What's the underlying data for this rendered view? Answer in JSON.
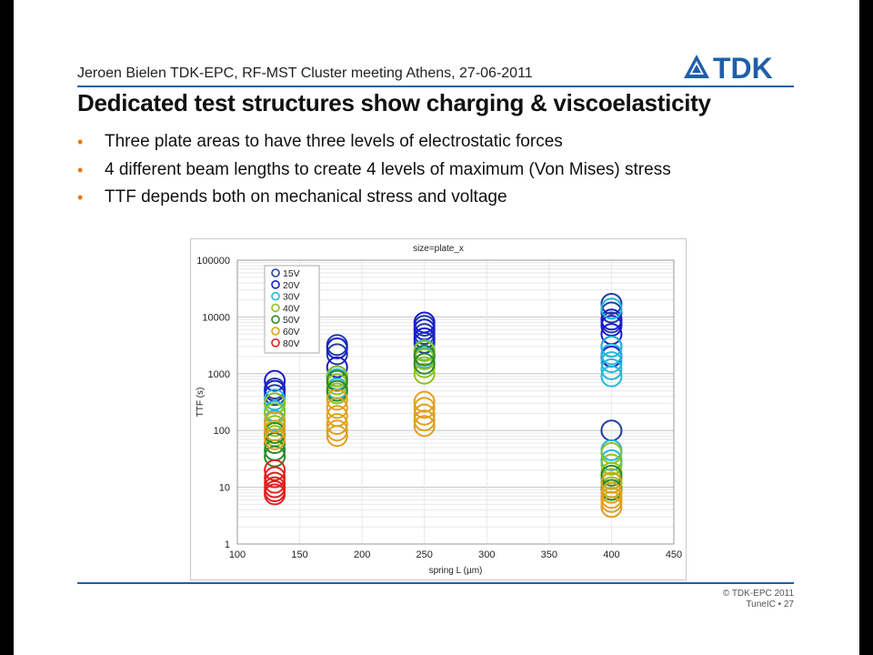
{
  "slide": {
    "header": "Jeroen Bielen TDK-EPC, RF-MST Cluster meeting Athens, 27-06-2011",
    "logo_text": "TDK",
    "title": "Dedicated test structures show charging & viscoelasticity",
    "bullets": [
      "Three plate areas to have three levels of electrostatic forces",
      "4 different beam lengths to create 4 levels of maximum (Von Mises) stress",
      "TTF depends both on mechanical stress and voltage"
    ],
    "footer_copyright": "© TDK-EPC 2011",
    "footer_page": "TuneIC • 27",
    "colors": {
      "rule": "#1f5fa8",
      "bullet": "#e67817",
      "logo": "#1f5fa8"
    }
  },
  "chart_data": {
    "type": "scatter",
    "title": "size=plate_x",
    "xlabel": "spring L (µm)",
    "ylabel": "TTF (s)",
    "xlim": [
      100,
      450
    ],
    "ylim": [
      1,
      100000
    ],
    "y_scale": "log",
    "x_ticks": [
      "100",
      "150",
      "200",
      "250",
      "300",
      "350",
      "400",
      "450"
    ],
    "y_ticks": [
      "1",
      "10",
      "100",
      "1000",
      "10000",
      "100000"
    ],
    "grid": true,
    "legend": "top-left",
    "series": [
      {
        "name": "15V",
        "color": "#1f3fa0",
        "points": [
          [
            130,
            550
          ],
          [
            130,
            420
          ],
          [
            130,
            300
          ],
          [
            180,
            3200
          ],
          [
            180,
            2200
          ],
          [
            250,
            7000
          ],
          [
            250,
            5000
          ],
          [
            250,
            3500
          ],
          [
            400,
            17000
          ],
          [
            400,
            12000
          ],
          [
            400,
            8000
          ],
          [
            400,
            100
          ]
        ]
      },
      {
        "name": "20V",
        "color": "#1a1acc",
        "points": [
          [
            130,
            750
          ],
          [
            130,
            500
          ],
          [
            180,
            2800
          ],
          [
            180,
            1300
          ],
          [
            180,
            900
          ],
          [
            250,
            8000
          ],
          [
            250,
            6000
          ],
          [
            250,
            4200
          ],
          [
            400,
            9000
          ],
          [
            400,
            7000
          ],
          [
            400,
            5000
          ],
          [
            400,
            3000
          ],
          [
            400,
            2000
          ]
        ]
      },
      {
        "name": "30V",
        "color": "#22b8d8",
        "points": [
          [
            130,
            350
          ],
          [
            130,
            220
          ],
          [
            130,
            150
          ],
          [
            180,
            800
          ],
          [
            180,
            550
          ],
          [
            250,
            2600
          ],
          [
            250,
            1900
          ],
          [
            400,
            14000
          ],
          [
            400,
            3000
          ],
          [
            400,
            2200
          ],
          [
            400,
            1600
          ],
          [
            400,
            1200
          ],
          [
            400,
            900
          ],
          [
            400,
            45
          ],
          [
            400,
            30
          ]
        ]
      },
      {
        "name": "40V",
        "color": "#8ec21f",
        "points": [
          [
            130,
            300
          ],
          [
            130,
            200
          ],
          [
            130,
            120
          ],
          [
            130,
            80
          ],
          [
            180,
            900
          ],
          [
            180,
            650
          ],
          [
            180,
            450
          ],
          [
            250,
            2500
          ],
          [
            250,
            1800
          ],
          [
            250,
            1300
          ],
          [
            250,
            1000
          ],
          [
            400,
            40
          ],
          [
            400,
            25
          ],
          [
            400,
            18
          ],
          [
            400,
            14
          ],
          [
            400,
            10
          ],
          [
            400,
            8
          ]
        ]
      },
      {
        "name": "50V",
        "color": "#2a8a2a",
        "points": [
          [
            130,
            90
          ],
          [
            130,
            60
          ],
          [
            130,
            45
          ],
          [
            130,
            35
          ],
          [
            180,
            750
          ],
          [
            180,
            500
          ],
          [
            250,
            2100
          ],
          [
            250,
            1500
          ],
          [
            400,
            16
          ],
          [
            400,
            12
          ],
          [
            400,
            9
          ]
        ]
      },
      {
        "name": "60V",
        "color": "#e0a020",
        "points": [
          [
            130,
            140
          ],
          [
            130,
            100
          ],
          [
            130,
            70
          ],
          [
            180,
            350
          ],
          [
            180,
            250
          ],
          [
            180,
            180
          ],
          [
            180,
            130
          ],
          [
            180,
            100
          ],
          [
            180,
            80
          ],
          [
            250,
            320
          ],
          [
            250,
            250
          ],
          [
            250,
            190
          ],
          [
            250,
            150
          ],
          [
            250,
            120
          ],
          [
            400,
            12
          ],
          [
            400,
            8
          ],
          [
            400,
            6.5
          ],
          [
            400,
            5.5
          ],
          [
            400,
            4.5
          ]
        ]
      },
      {
        "name": "80V",
        "color": "#e02020",
        "points": [
          [
            130,
            20
          ],
          [
            130,
            15
          ],
          [
            130,
            12
          ],
          [
            130,
            10
          ],
          [
            130,
            8.5
          ],
          [
            130,
            7.5
          ]
        ]
      }
    ]
  }
}
